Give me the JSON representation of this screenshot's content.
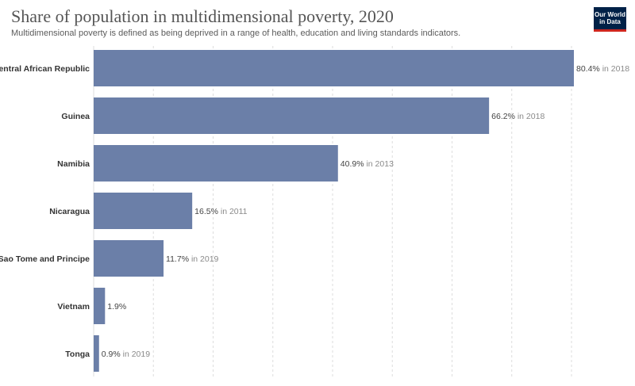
{
  "header": {
    "title": "Share of population in multidimensional poverty, 2020",
    "subtitle": "Multidimensional poverty is defined as being deprived in a range of health, education and living standards indicators.",
    "logo_line1": "Our World",
    "logo_line2": "in Data"
  },
  "colors": {
    "bar": "#6b7fa8",
    "grid": "#dddddd"
  },
  "chart_data": {
    "type": "bar",
    "orientation": "horizontal",
    "title": "Share of population in multidimensional poverty, 2020",
    "xlim": [
      0,
      80.4
    ],
    "grid": "vertical dashed",
    "categories": [
      "Central African Republic",
      "Guinea",
      "Namibia",
      "Nicaragua",
      "Sao Tome and Principe",
      "Vietnam",
      "Tonga"
    ],
    "values": [
      80.4,
      66.2,
      40.9,
      16.5,
      11.7,
      1.9,
      0.9
    ],
    "value_labels": [
      "80.4%",
      "66.2%",
      "40.9%",
      "16.5%",
      "11.7%",
      "1.9%",
      "0.9%"
    ],
    "year_labels": [
      "in 2018",
      "in 2018",
      "in 2013",
      "in 2011",
      "in 2019",
      "",
      "in 2019"
    ]
  }
}
